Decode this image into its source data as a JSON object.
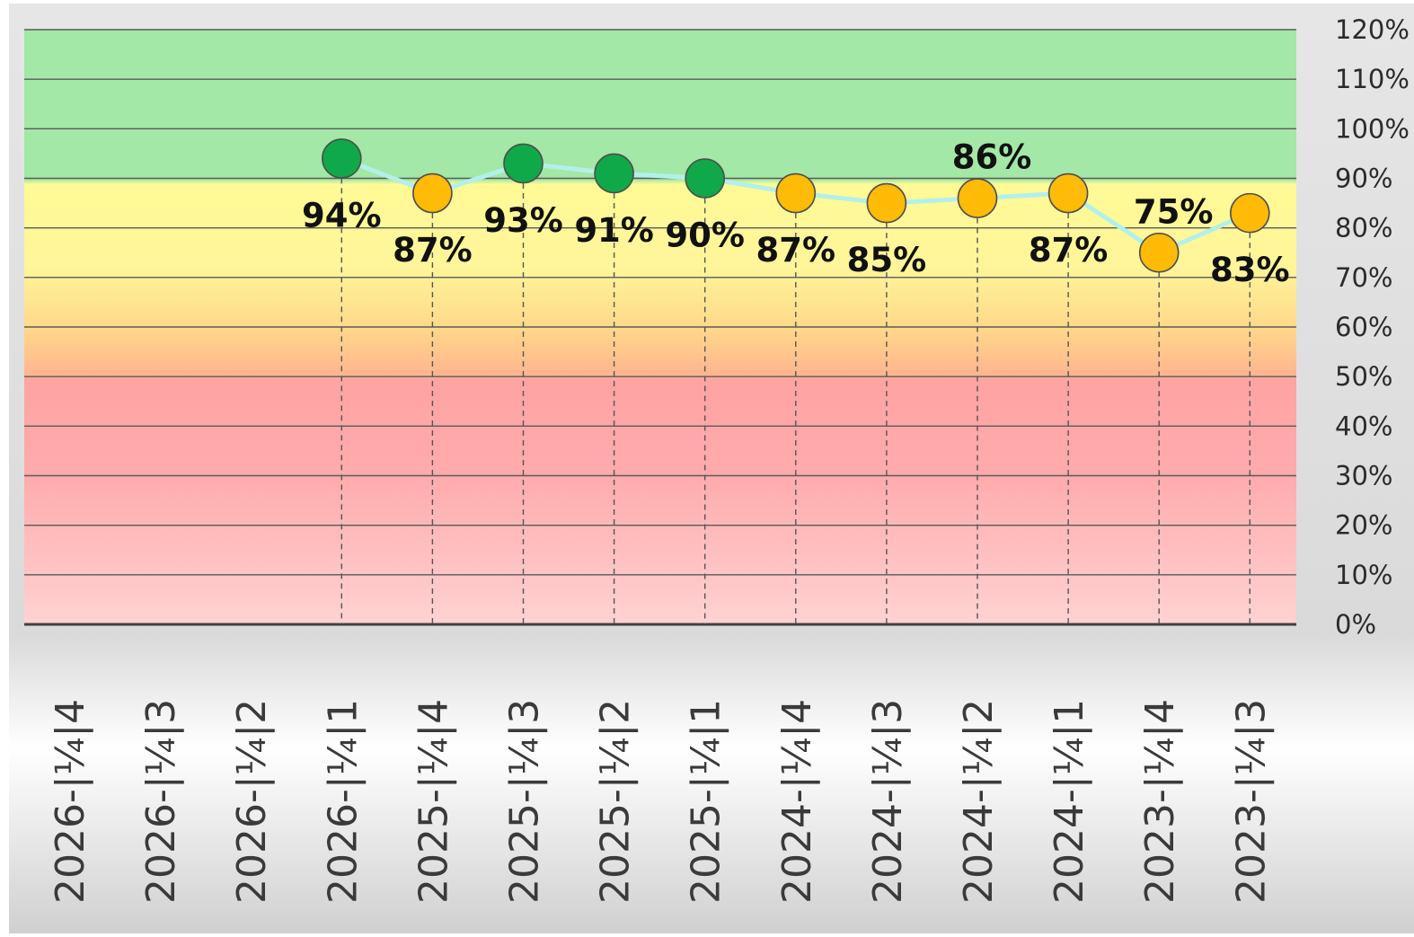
{
  "chart_data": {
    "type": "line",
    "categories": [
      "2026-|¼|4",
      "2026-|¼|3",
      "2026-|¼|2",
      "2026-|¼|1",
      "2025-|¼|4",
      "2025-|¼|3",
      "2025-|¼|2",
      "2025-|¼|1",
      "2024-|¼|4",
      "2024-|¼|3",
      "2024-|¼|2",
      "2024-|¼|1",
      "2023-|¼|4",
      "2023-|¼|3"
    ],
    "series": [
      {
        "values": [
          null,
          null,
          null,
          94,
          87,
          93,
          91,
          90,
          87,
          85,
          86,
          87,
          75,
          83
        ],
        "labels": [
          "",
          "",
          "",
          "94%",
          "87%",
          "93%",
          "91%",
          "90%",
          "87%",
          "85%",
          "86%",
          "87%",
          "75%",
          "83%"
        ],
        "line_color": "#b2f0ec"
      }
    ],
    "ylim": [
      0,
      120
    ],
    "yticks": [
      "0%",
      "10%",
      "20%",
      "30%",
      "40%",
      "50%",
      "60%",
      "70%",
      "80%",
      "90%",
      "100%",
      "110%",
      "120%"
    ],
    "y_axis_position": "right",
    "grid": true,
    "title": "",
    "xlabel": "",
    "ylabel": "",
    "bands": [
      {
        "from": 0,
        "to": 50,
        "color": "#ffa3a3"
      },
      {
        "from": 50,
        "to": 70,
        "color": "#ffd98a"
      },
      {
        "from": 70,
        "to": 89,
        "color": "#fffa96"
      },
      {
        "from": 89,
        "to": 120,
        "color": "#a3e8a6"
      }
    ],
    "marker_colors": {
      "above_target": "#0fa94a",
      "below_target": "#ffbb06"
    },
    "target": 89
  }
}
